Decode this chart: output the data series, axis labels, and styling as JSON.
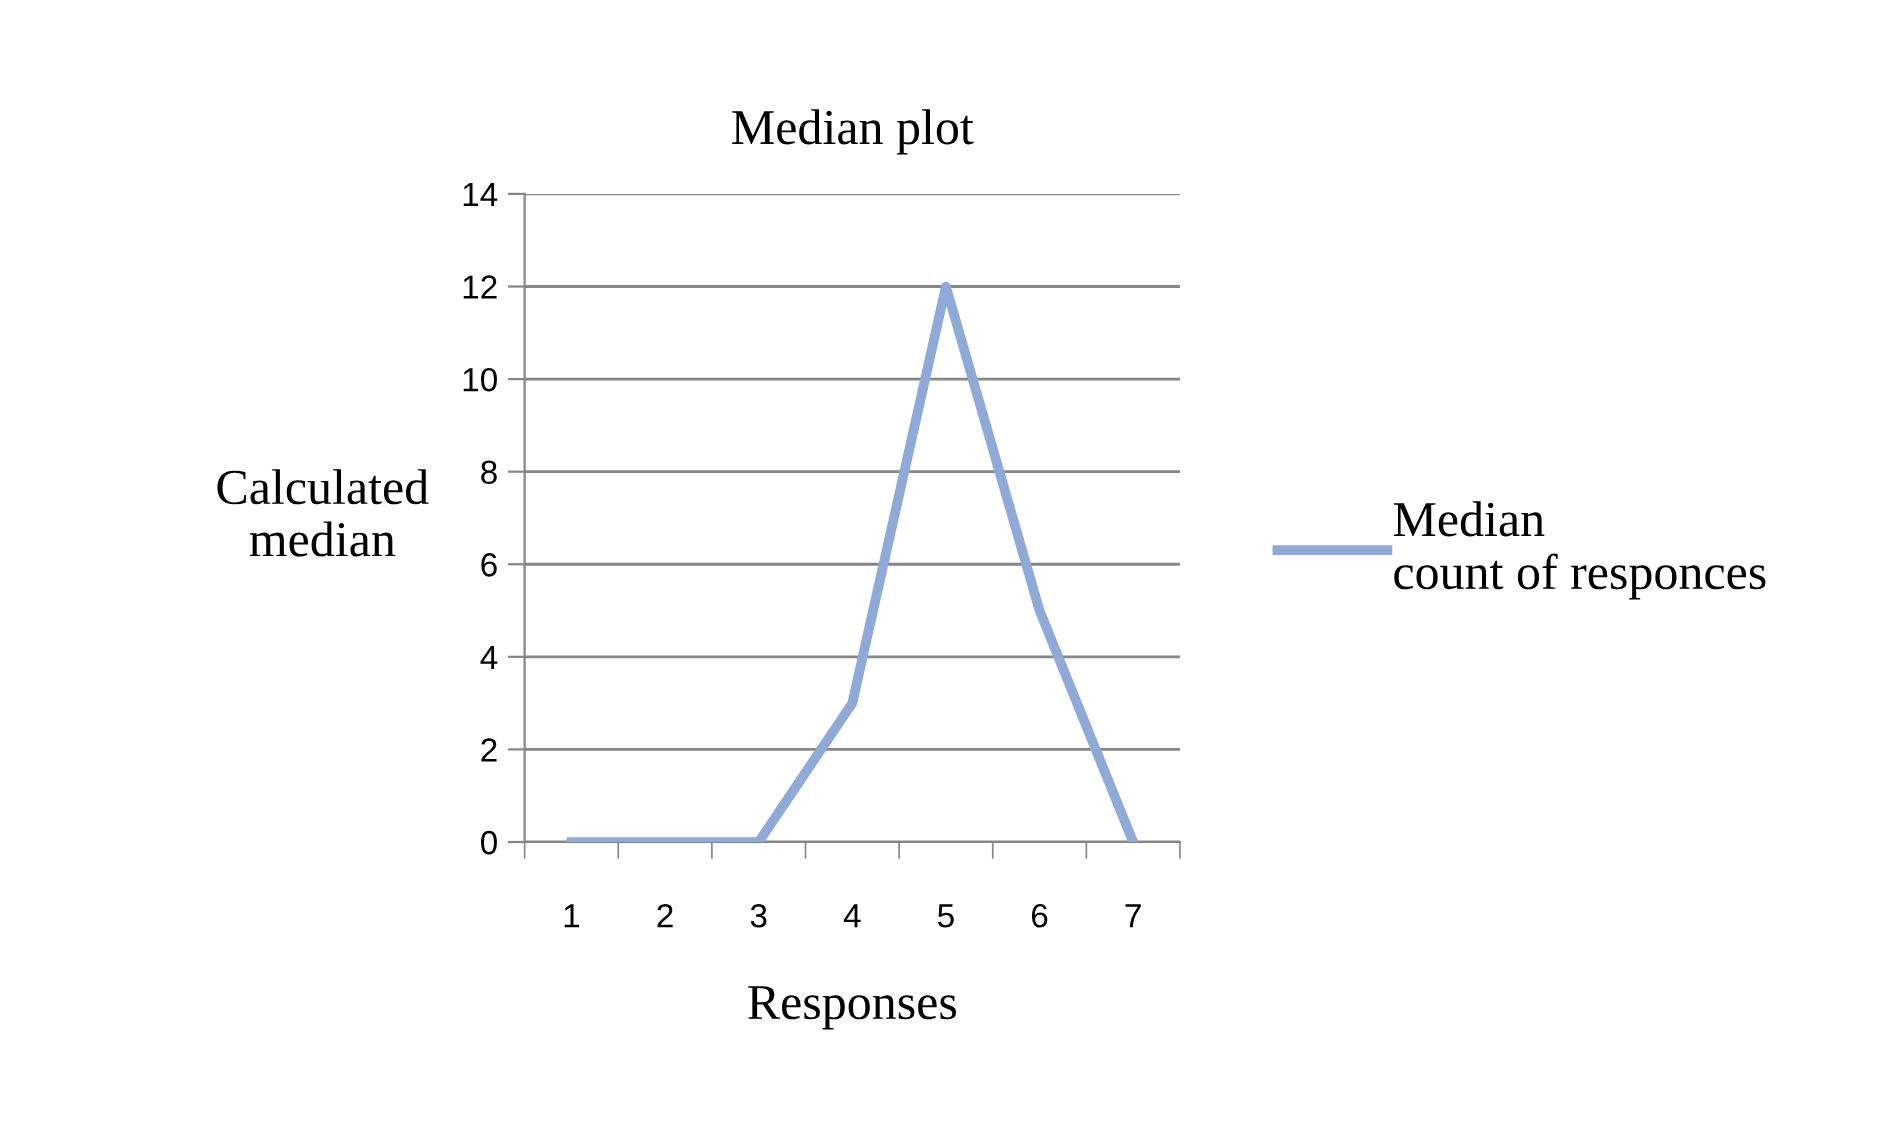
{
  "chart_data": {
    "type": "line",
    "title": "Median plot",
    "xlabel": "Responses",
    "ylabel": "Calculated\nmedian",
    "categories": [
      "1",
      "2",
      "3",
      "4",
      "5",
      "6",
      "7"
    ],
    "series": [
      {
        "name": "Median\ncount of responces",
        "color": "#8faad8",
        "values": [
          0,
          0,
          0,
          3,
          12,
          5,
          0
        ]
      }
    ],
    "ylim": [
      0,
      14
    ],
    "yticks": [
      0,
      2,
      4,
      6,
      8,
      10,
      12,
      14
    ],
    "grid": "y",
    "legend": "right",
    "marker": "none",
    "line_style": "solid"
  }
}
